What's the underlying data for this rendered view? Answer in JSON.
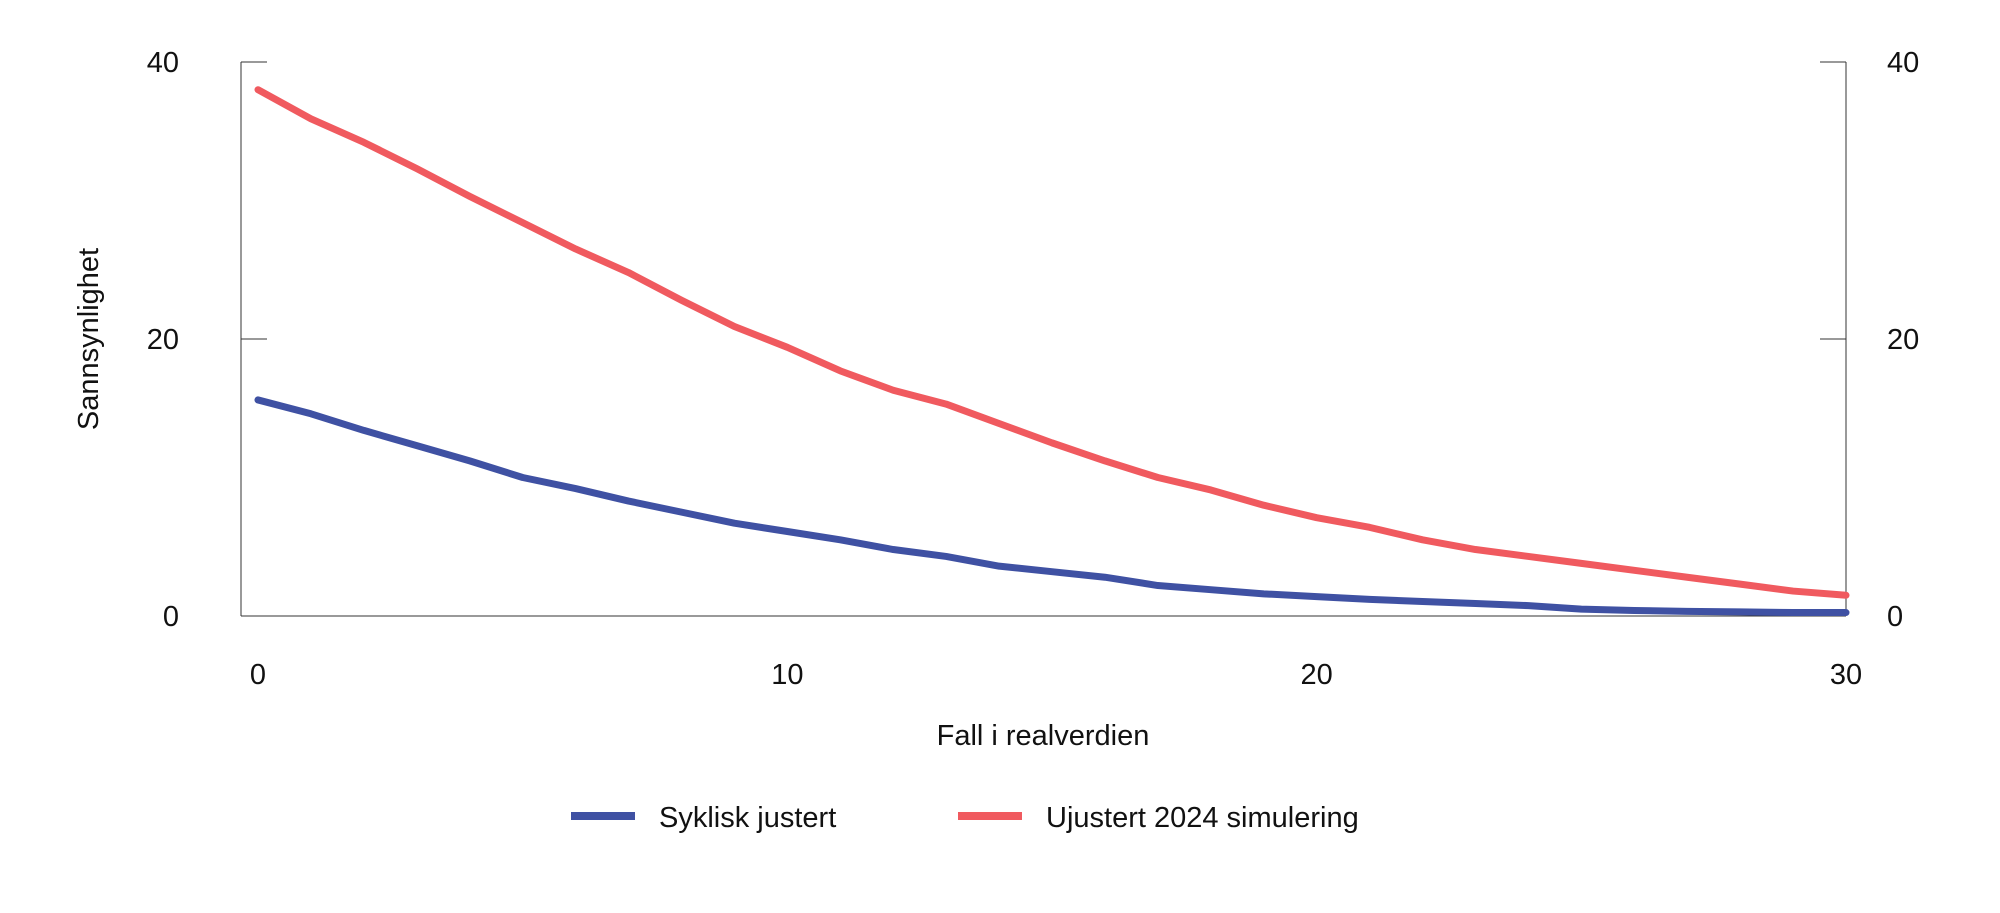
{
  "chart_data": {
    "type": "line",
    "title": "",
    "xlabel": "Fall i realverdien",
    "ylabel": "Sannsynlighet",
    "xlim": [
      0,
      30
    ],
    "ylim": [
      0,
      40
    ],
    "x_ticks": [
      0,
      10,
      20,
      30
    ],
    "y_ticks": [
      0,
      20,
      40
    ],
    "x_tick_labels": [
      "0",
      "10",
      "20",
      "30"
    ],
    "y_tick_labels": [
      "0",
      "20",
      "40"
    ],
    "grid": false,
    "legend_position": "bottom-center",
    "x": [
      0,
      1,
      2,
      3,
      4,
      5,
      6,
      7,
      8,
      9,
      10,
      11,
      12,
      13,
      14,
      15,
      16,
      17,
      18,
      19,
      20,
      21,
      22,
      23,
      24,
      25,
      26,
      27,
      28,
      29,
      30
    ],
    "series": [
      {
        "name": "Syklisk justert",
        "color": "#3f51a3",
        "values": [
          15.6,
          14.6,
          13.4,
          12.3,
          11.2,
          10.0,
          9.2,
          8.3,
          7.5,
          6.7,
          6.1,
          5.5,
          4.8,
          4.3,
          3.6,
          3.2,
          2.8,
          2.2,
          1.9,
          1.6,
          1.4,
          1.2,
          1.05,
          0.9,
          0.75,
          0.5,
          0.4,
          0.33,
          0.3,
          0.25,
          0.25
        ]
      },
      {
        "name": "Ujustert 2024 simulering",
        "color": "#f05a5f",
        "values": [
          38.0,
          35.9,
          34.2,
          32.3,
          30.3,
          28.4,
          26.5,
          24.8,
          22.8,
          20.9,
          19.4,
          17.7,
          16.3,
          15.3,
          13.9,
          12.5,
          11.2,
          10.0,
          9.1,
          8.0,
          7.1,
          6.4,
          5.5,
          4.8,
          4.3,
          3.8,
          3.3,
          2.8,
          2.3,
          1.8,
          1.5
        ]
      }
    ]
  }
}
